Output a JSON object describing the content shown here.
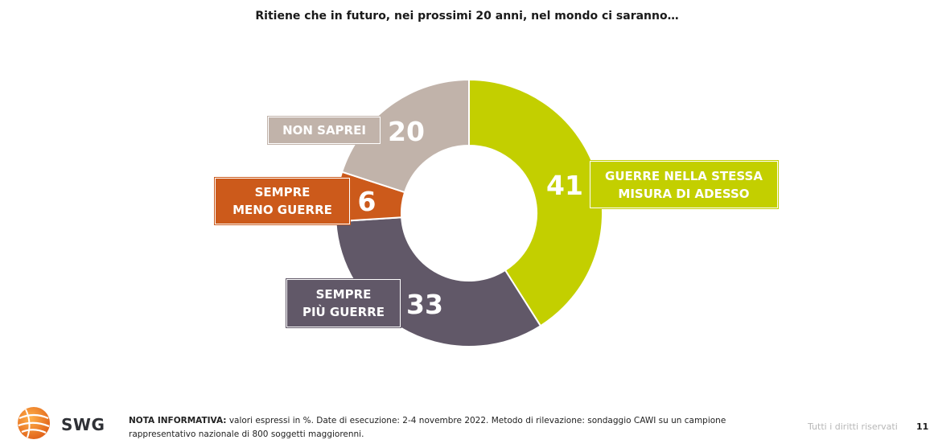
{
  "chart_data": {
    "type": "donut",
    "title": "Ritiene che in futuro, nei prossimi 20 anni, nel mondo ci saranno…",
    "unit": "%",
    "slices": [
      {
        "name": "GUERRE NELLA STESSA MISURA DI ADESSO",
        "label_lines": [
          "GUERRE NELLA STESSA",
          "MISURA DI ADESSO"
        ],
        "value": 41,
        "color": "#c3cf00"
      },
      {
        "name": "SEMPRE PIÙ GUERRE",
        "label_lines": [
          "SEMPRE",
          "PIÙ GUERRE"
        ],
        "value": 33,
        "color": "#615868"
      },
      {
        "name": "SEMPRE MENO GUERRE",
        "label_lines": [
          "SEMPRE",
          "MENO GUERRE"
        ],
        "value": 6,
        "color": "#cc5a1b"
      },
      {
        "name": "NON SAPREI",
        "label_lines": [
          "NON SAPREI"
        ],
        "value": 20,
        "color": "#c1b3aa"
      }
    ]
  },
  "footer": {
    "logo_text": "SWG",
    "note_bold": "NOTA INFORMATIVA:",
    "note_text": " valori espressi in %. Date di esecuzione: 2-4 novembre 2022. Metodo di rilevazione: sondaggio CAWI su un campione rappresentativo nazionale di 800 soggetti maggiorenni.",
    "rights": "Tutti i diritti riservati",
    "page_number": "11"
  }
}
